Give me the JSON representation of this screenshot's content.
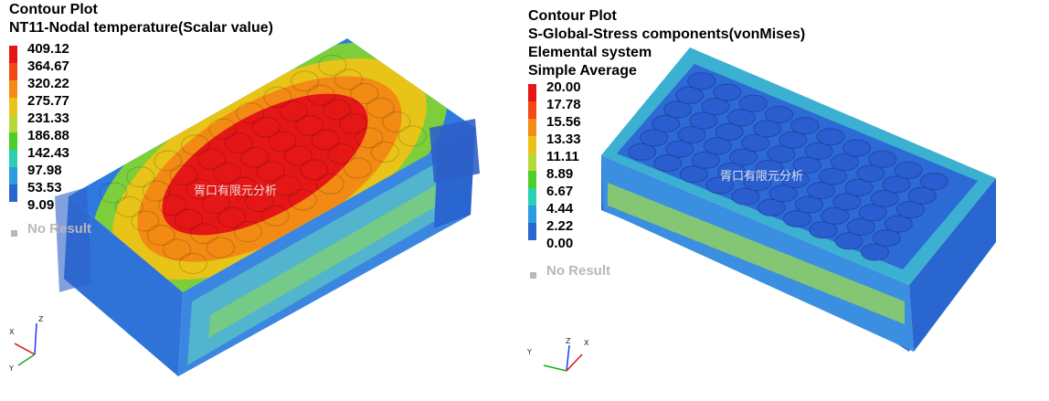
{
  "left_plot": {
    "title_lines": [
      "Contour Plot",
      "NT11-Nodal temperature(Scalar value)"
    ],
    "legend_values": [
      "409.12",
      "364.67",
      "320.22",
      "275.77",
      "231.33",
      "186.88",
      "142.43",
      "97.98",
      "53.53",
      "9.09"
    ],
    "legend_colors": [
      "#e51616",
      "#f24a14",
      "#f58b14",
      "#e8c318",
      "#b8d838",
      "#4ccf2a",
      "#2ad0b4",
      "#2a9ce0",
      "#2a66d0",
      "#1f3fb8"
    ],
    "no_result": "No Result",
    "watermark": "胥口有限元分析",
    "triad": {
      "x": "X",
      "y": "Y",
      "z": "Z"
    }
  },
  "right_plot": {
    "title_lines": [
      "Contour Plot",
      "S-Global-Stress components(vonMises)",
      "Elemental system",
      "Simple Average"
    ],
    "legend_values": [
      "20.00",
      "17.78",
      "15.56",
      "13.33",
      "11.11",
      "8.89",
      "6.67",
      "4.44",
      "2.22",
      "0.00"
    ],
    "legend_colors": [
      "#e51616",
      "#f24a14",
      "#f58b14",
      "#e8c318",
      "#b8d838",
      "#4ccf2a",
      "#2ad0b4",
      "#2a9ce0",
      "#2a66d0",
      "#1f3fb8"
    ],
    "no_result": "No Result",
    "watermark": "胥口有限元分析",
    "triad": {
      "x": "X",
      "y": "Y",
      "z": "Z"
    }
  }
}
